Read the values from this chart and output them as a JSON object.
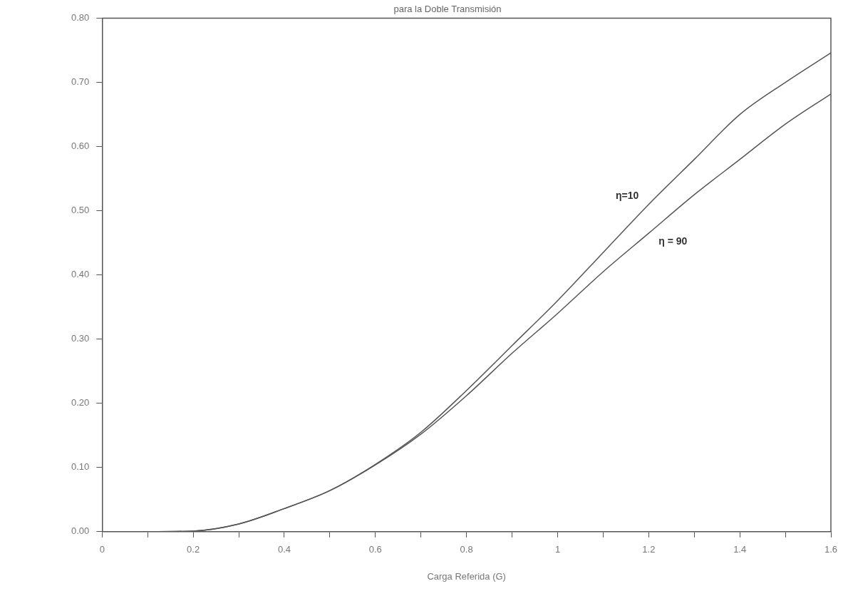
{
  "chart_data": {
    "type": "line",
    "title": "para la Doble Transmisión",
    "xlabel": "Carga Referida (G)",
    "x": [
      0,
      0.1,
      0.2,
      0.3,
      0.4,
      0.5,
      0.6,
      0.7,
      0.8,
      0.9,
      1.0,
      1.1,
      1.2,
      1.3,
      1.4,
      1.5,
      1.6
    ],
    "series": [
      {
        "name": "η=10",
        "color": "#555555",
        "values": [
          0,
          0,
          0.001,
          0.012,
          0.036,
          0.064,
          0.105,
          0.155,
          0.22,
          0.29,
          0.36,
          0.435,
          0.51,
          0.58,
          0.65,
          0.7,
          0.746
        ]
      },
      {
        "name": "η = 90",
        "color": "#555555",
        "values": [
          0,
          0,
          0.001,
          0.012,
          0.036,
          0.064,
          0.104,
          0.152,
          0.212,
          0.278,
          0.34,
          0.405,
          0.465,
          0.525,
          0.58,
          0.635,
          0.682
        ]
      }
    ],
    "xlim": [
      0,
      1.6
    ],
    "ylim": [
      0,
      0.8
    ],
    "xticks": [
      0,
      {
        "value": 0.1,
        "label": null
      },
      0.2,
      {
        "value": 0.3,
        "label": null
      },
      0.4,
      {
        "value": 0.5,
        "label": null
      },
      0.6,
      {
        "value": 0.7,
        "label": null
      },
      0.8,
      {
        "value": 0.9,
        "label": null
      },
      1,
      {
        "value": 1.1,
        "label": null
      },
      1.2,
      {
        "value": 1.3,
        "label": null
      },
      1.4,
      {
        "value": 1.5,
        "label": null
      },
      1.6
    ],
    "yticks": [
      {
        "value": 0,
        "label": "0.00"
      },
      {
        "value": 0.1,
        "label": "0.10"
      },
      {
        "value": 0.2,
        "label": "0.20"
      },
      {
        "value": 0.3,
        "label": "0.30"
      },
      {
        "value": 0.4,
        "label": "0.40"
      },
      {
        "value": 0.5,
        "label": "0.50"
      },
      {
        "value": 0.6,
        "label": "0.60"
      },
      {
        "value": 0.7,
        "label": "0.70"
      },
      {
        "value": 0.8,
        "label": "0.80"
      }
    ],
    "grid": false,
    "legend": false,
    "marker": "none",
    "line_style": "solid"
  }
}
